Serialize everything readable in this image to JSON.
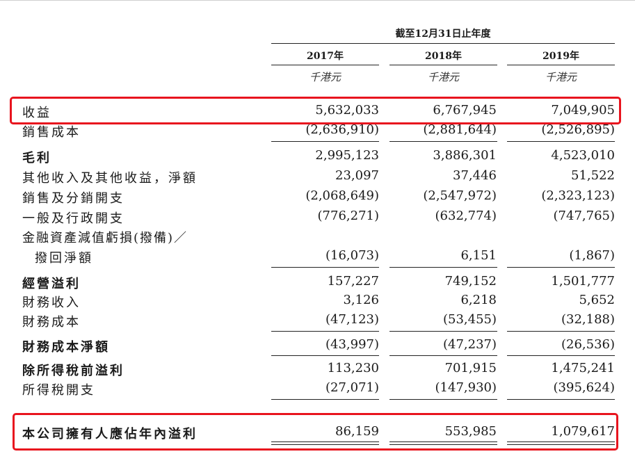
{
  "header": {
    "period": "截至12月31日止年度",
    "years": [
      "2017年",
      "2018年",
      "2019年"
    ],
    "unit": "千港元"
  },
  "rows": [
    {
      "label": "收益",
      "values": [
        "5,632,033",
        "6,767,945",
        "7,049,905"
      ]
    },
    {
      "label": "銷售成本",
      "values": [
        "(2,636,910)",
        "(2,881,644)",
        "(2,526,895)"
      ]
    },
    {
      "label": "毛利",
      "values": [
        "2,995,123",
        "3,886,301",
        "4,523,010"
      ]
    },
    {
      "label": "其他收入及其他收益，淨額",
      "values": [
        "23,097",
        "37,446",
        "51,522"
      ]
    },
    {
      "label": "銷售及分銷開支",
      "values": [
        "(2,068,649)",
        "(2,547,972)",
        "(2,323,123)"
      ]
    },
    {
      "label": "一般及行政開支",
      "values": [
        "(776,271)",
        "(632,774)",
        "(747,765)"
      ]
    },
    {
      "label": "金融資產減值虧損(撥備)／",
      "label2": "撥回淨額",
      "values": [
        "(16,073)",
        "6,151",
        "(1,867)"
      ]
    },
    {
      "label": "經營溢利",
      "values": [
        "157,227",
        "749,152",
        "1,501,777"
      ]
    },
    {
      "label": "財務收入",
      "values": [
        "3,126",
        "6,218",
        "5,652"
      ]
    },
    {
      "label": "財務成本",
      "values": [
        "(47,123)",
        "(53,455)",
        "(32,188)"
      ]
    },
    {
      "label": "財務成本淨額",
      "values": [
        "(43,997)",
        "(47,237)",
        "(26,536)"
      ]
    },
    {
      "label": "除所得稅前溢利",
      "values": [
        "113,230",
        "701,915",
        "1,475,241"
      ]
    },
    {
      "label": "所得稅開支",
      "values": [
        "(27,071)",
        "(147,930)",
        "(395,624)"
      ]
    },
    {
      "label": "本公司擁有人應佔年內溢利",
      "values": [
        "86,159",
        "553,985",
        "1,079,617"
      ]
    }
  ],
  "highlight_color": "#e8141e"
}
